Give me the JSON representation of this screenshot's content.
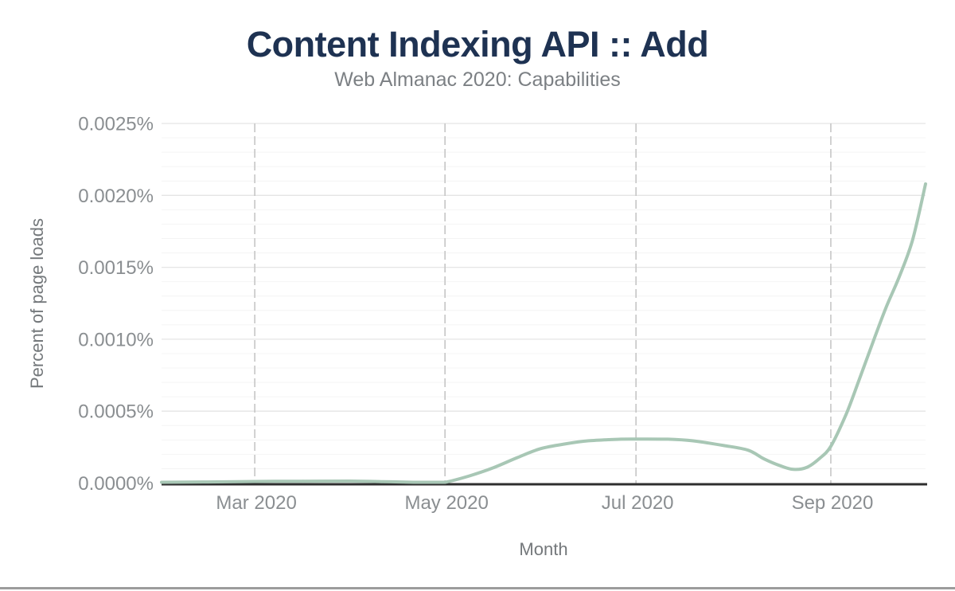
{
  "chart_data": {
    "type": "line",
    "title": "Content Indexing API :: Add",
    "subtitle": "Web Almanac 2020: Capabilities",
    "xlabel": "Month",
    "ylabel": "Percent of page loads",
    "ylim": [
      0,
      0.0025
    ],
    "x_range": [
      "Feb 2020",
      "mid-Oct 2020"
    ],
    "grid": {
      "major_color": "#e5e5e5",
      "minor_color": "#f4f4f4",
      "vertical_color": "#c6c6c6",
      "minor_step": 0.0001,
      "major_step": 0.0005,
      "vertical_dashed": true
    },
    "colors": {
      "title": "#1e3252",
      "subtitle": "#7c8084",
      "tick_label": "#8a8e91",
      "axis_title": "#74787b",
      "axis_line": "#2f2f2f",
      "series_line": "#a8c7b5",
      "bottom_divider": "#9c9c9c"
    },
    "y_ticks": [
      {
        "value": 0.0,
        "label": "0.0000%"
      },
      {
        "value": 0.0005,
        "label": "0.0005%"
      },
      {
        "value": 0.001,
        "label": "0.0010%"
      },
      {
        "value": 0.0015,
        "label": "0.0015%"
      },
      {
        "value": 0.002,
        "label": "0.0020%"
      },
      {
        "value": 0.0025,
        "label": "0.0025%"
      }
    ],
    "x_ticks": [
      {
        "label": "Mar 2020",
        "pos": 0.122
      },
      {
        "label": "May 2020",
        "pos": 0.371
      },
      {
        "label": "Jul 2020",
        "pos": 0.621
      },
      {
        "label": "Sep 2020",
        "pos": 0.876
      }
    ],
    "series": [
      {
        "name": "Content Indexing API :: Add",
        "color": "#a8c7b5",
        "stroke_width": 4,
        "monthly_estimates": [
          {
            "month": "Feb 2020",
            "value": 5.6e-06
          },
          {
            "month": "Mar 2020",
            "value": 1.1e-05
          },
          {
            "month": "Apr 2020",
            "value": 1.4e-05
          },
          {
            "month": "May 2020",
            "value": 3e-06
          },
          {
            "month": "Jun 2020",
            "value": 0.000239
          },
          {
            "month": "Jul 2020",
            "value": 0.000306
          },
          {
            "month": "Aug 2020",
            "value": 0.000245
          },
          {
            "month": "Sep 2020",
            "value": 0.000256
          },
          {
            "month": "Oct 2020",
            "value": 0.00208
          }
        ],
        "curve_samples": [
          [
            0.0,
            5.6e-06
          ],
          [
            0.06,
            7.5e-06
          ],
          [
            0.122,
            1.1e-05
          ],
          [
            0.184,
            1.3e-05
          ],
          [
            0.247,
            1.4e-05
          ],
          [
            0.29,
            1e-05
          ],
          [
            0.33,
            3e-06
          ],
          [
            0.356,
            5e-07
          ],
          [
            0.371,
            3e-06
          ],
          [
            0.403,
            5e-05
          ],
          [
            0.434,
            0.000106
          ],
          [
            0.466,
            0.000178
          ],
          [
            0.496,
            0.000239
          ],
          [
            0.528,
            0.000272
          ],
          [
            0.559,
            0.000294
          ],
          [
            0.601,
            0.000305
          ],
          [
            0.622,
            0.000306
          ],
          [
            0.663,
            0.000305
          ],
          [
            0.695,
            0.000294
          ],
          [
            0.736,
            0.000261
          ],
          [
            0.768,
            0.000228
          ],
          [
            0.789,
            0.000167
          ],
          [
            0.81,
            0.00012
          ],
          [
            0.827,
            9.5e-05
          ],
          [
            0.845,
            0.00011
          ],
          [
            0.861,
            0.00017
          ],
          [
            0.876,
            0.000256
          ],
          [
            0.896,
            0.000478
          ],
          [
            0.913,
            0.000717
          ],
          [
            0.931,
            0.000978
          ],
          [
            0.948,
            0.001217
          ],
          [
            0.966,
            0.00144
          ],
          [
            0.983,
            0.00169
          ],
          [
            1.0,
            0.00208
          ]
        ]
      }
    ]
  }
}
